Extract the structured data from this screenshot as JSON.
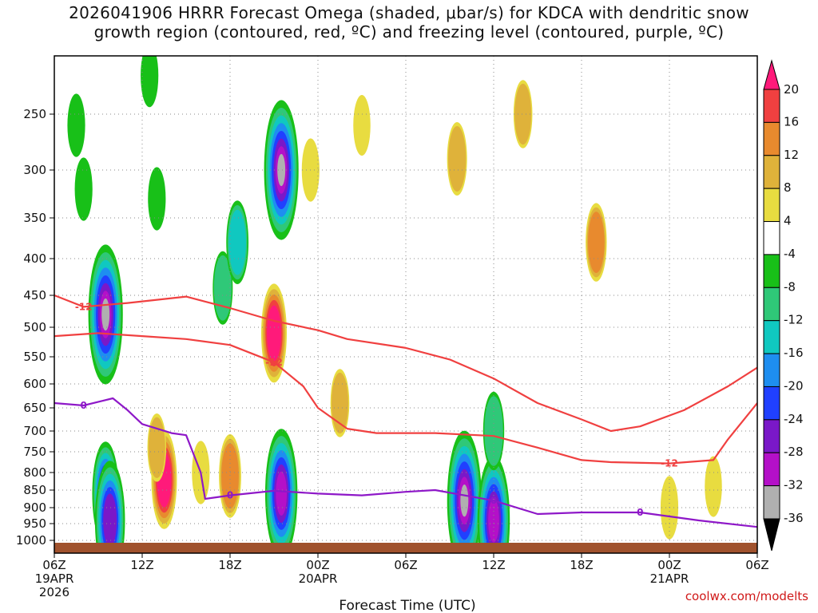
{
  "chart_data": {
    "type": "heatmap",
    "title_line1": "2026041906 HRRR Forecast Omega (shaded, μbar/s) for KDCA with dendritic snow",
    "title_line2": "growth region (contoured, red, ºC) and freezing level (contoured, purple, ºC)",
    "xlabel": "Forecast Time (UTC)",
    "credit": "coolwx.com/modelts",
    "x_hours_range": [
      0,
      48
    ],
    "x_ticks": [
      {
        "h": 0,
        "label": "06Z",
        "date": "19APR",
        "year": "2026"
      },
      {
        "h": 6,
        "label": "12Z"
      },
      {
        "h": 12,
        "label": "18Z"
      },
      {
        "h": 18,
        "label": "00Z",
        "date": "20APR"
      },
      {
        "h": 24,
        "label": "06Z"
      },
      {
        "h": 30,
        "label": "12Z"
      },
      {
        "h": 36,
        "label": "18Z"
      },
      {
        "h": 42,
        "label": "00Z",
        "date": "21APR"
      },
      {
        "h": 48,
        "label": "06Z"
      }
    ],
    "y_ticks": [
      250,
      300,
      350,
      400,
      450,
      500,
      550,
      600,
      650,
      700,
      750,
      800,
      850,
      900,
      950,
      1000
    ],
    "y_range_hPa": [
      200,
      1020
    ],
    "colorbar": {
      "labels": [
        "20",
        "16",
        "12",
        "8",
        "4",
        "-4",
        "-8",
        "-12",
        "-16",
        "-20",
        "-24",
        "-28",
        "-32",
        "-36"
      ],
      "colors": [
        "#ff1a7a",
        "#f04040",
        "#e88a2e",
        "#dfb23a",
        "#e8dc40",
        "#ffffff",
        "#18c018",
        "#2fc878",
        "#10c8c0",
        "#1e8ef0",
        "#2040ff",
        "#7a18c8",
        "#b410c8",
        "#b0b0b0",
        "#000000"
      ]
    },
    "omega_cells": [
      {
        "h": 1.5,
        "p": 260,
        "v": -6
      },
      {
        "h": 2.0,
        "p": 320,
        "v": -6
      },
      {
        "h": 3.5,
        "p": 480,
        "v": -36
      },
      {
        "h": 3.5,
        "p": 860,
        "v": -22
      },
      {
        "h": 3.8,
        "p": 940,
        "v": -28
      },
      {
        "h": 6.5,
        "p": 220,
        "v": -6
      },
      {
        "h": 7.0,
        "p": 330,
        "v": -6
      },
      {
        "h": 7.5,
        "p": 820,
        "v": 20
      },
      {
        "h": 7.0,
        "p": 740,
        "v": 8
      },
      {
        "h": 10.0,
        "p": 800,
        "v": 6
      },
      {
        "h": 11.5,
        "p": 440,
        "v": -10
      },
      {
        "h": 12.0,
        "p": 810,
        "v": 14
      },
      {
        "h": 12.5,
        "p": 380,
        "v": -14
      },
      {
        "h": 15.5,
        "p": 300,
        "v": -36
      },
      {
        "h": 15.5,
        "p": 860,
        "v": -32
      },
      {
        "h": 15.0,
        "p": 510,
        "v": 20
      },
      {
        "h": 17.5,
        "p": 300,
        "v": 6
      },
      {
        "h": 19.5,
        "p": 640,
        "v": 8
      },
      {
        "h": 21.0,
        "p": 260,
        "v": 5
      },
      {
        "h": 28.0,
        "p": 880,
        "v": -36
      },
      {
        "h": 30.0,
        "p": 940,
        "v": -32
      },
      {
        "h": 30.0,
        "p": 700,
        "v": -12
      },
      {
        "h": 27.5,
        "p": 290,
        "v": 10
      },
      {
        "h": 32.0,
        "p": 250,
        "v": 8
      },
      {
        "h": 37.0,
        "p": 380,
        "v": 12
      },
      {
        "h": 42.0,
        "p": 900,
        "v": 6
      },
      {
        "h": 45.0,
        "p": 840,
        "v": 5
      }
    ],
    "dgz_contours": [
      {
        "label": "-12",
        "points": [
          [
            0,
            450
          ],
          [
            2,
            468
          ],
          [
            5,
            462
          ],
          [
            9,
            452
          ],
          [
            12,
            470
          ],
          [
            15,
            490
          ],
          [
            18,
            505
          ],
          [
            20,
            520
          ],
          [
            24,
            535
          ],
          [
            27,
            555
          ],
          [
            30,
            590
          ],
          [
            33,
            640
          ],
          [
            36,
            675
          ],
          [
            38,
            700
          ],
          [
            40,
            690
          ],
          [
            43,
            655
          ],
          [
            46,
            605
          ],
          [
            48,
            570
          ]
        ]
      },
      {
        "label": "-12",
        "points": [
          [
            0,
            515
          ],
          [
            3,
            510
          ],
          [
            6,
            515
          ],
          [
            9,
            520
          ],
          [
            12,
            530
          ],
          [
            15,
            560
          ],
          [
            17,
            605
          ],
          [
            18,
            650
          ],
          [
            20,
            695
          ],
          [
            22,
            705
          ],
          [
            26,
            705
          ],
          [
            30,
            712
          ],
          [
            33,
            740
          ],
          [
            36,
            770
          ],
          [
            38,
            775
          ],
          [
            42,
            778
          ],
          [
            45,
            770
          ],
          [
            46,
            720
          ],
          [
            48,
            640
          ]
        ]
      }
    ],
    "freezing_level": {
      "label": "0",
      "points": [
        [
          0,
          640
        ],
        [
          2,
          645
        ],
        [
          4,
          630
        ],
        [
          5,
          655
        ],
        [
          6,
          685
        ],
        [
          8,
          705
        ],
        [
          9,
          710
        ],
        [
          10,
          800
        ],
        [
          10.3,
          875
        ],
        [
          12,
          865
        ],
        [
          15,
          852
        ],
        [
          18,
          860
        ],
        [
          21,
          865
        ],
        [
          24,
          855
        ],
        [
          26,
          850
        ],
        [
          30,
          880
        ],
        [
          33,
          920
        ],
        [
          36,
          915
        ],
        [
          40,
          915
        ],
        [
          44,
          940
        ],
        [
          48,
          960
        ]
      ]
    }
  }
}
